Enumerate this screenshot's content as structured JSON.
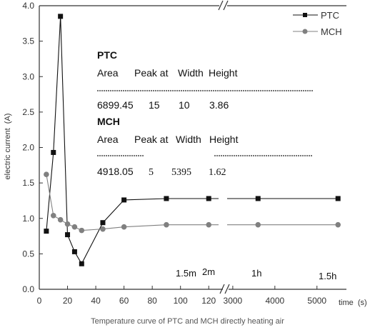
{
  "chart_data": {
    "type": "line",
    "ylabel": "electric current  (A)",
    "xlabel": "time  (s)",
    "caption": "Temperature curve of PTC and MCH directly heating air",
    "ylim": [
      0,
      4
    ],
    "y_ticks": [
      "0.0",
      "0.5",
      "1.0",
      "1.5",
      "2.0",
      "2.5",
      "3.0",
      "3.5",
      "4.0"
    ],
    "x_axis_broken": true,
    "x_segment1": {
      "range": [
        0,
        130
      ],
      "ticks": [
        "0",
        "20",
        "40",
        "60",
        "80",
        "100",
        "120"
      ]
    },
    "x_segment2": {
      "range": [
        2900,
        5700
      ],
      "ticks": [
        "3000",
        "4000",
        "5000"
      ]
    },
    "series": [
      {
        "name": "PTC",
        "marker": "square",
        "color": "#111111",
        "x": [
          5,
          10,
          15,
          20,
          25,
          30,
          45,
          60,
          90,
          120,
          3600,
          5500
        ],
        "y": [
          0.82,
          1.93,
          3.85,
          0.77,
          0.53,
          0.36,
          0.94,
          1.26,
          1.28,
          1.28,
          1.28,
          1.28
        ]
      },
      {
        "name": "MCH",
        "marker": "circle",
        "color": "#808080",
        "x": [
          5,
          10,
          15,
          20,
          25,
          30,
          45,
          60,
          90,
          120,
          3600,
          5500
        ],
        "y": [
          1.62,
          1.04,
          0.98,
          0.92,
          0.88,
          0.83,
          0.85,
          0.88,
          0.91,
          0.91,
          0.91,
          0.91
        ]
      }
    ],
    "time_labels": [
      "1.5m",
      "2m",
      "1h",
      "1.5h"
    ],
    "legend_position": "top-right",
    "grid": false,
    "peak_table": [
      {
        "name": "PTC",
        "headers": [
          "Area",
          "Peak at",
          "Width",
          "Height"
        ],
        "values": [
          "6899.45",
          "15",
          "10",
          "3.86"
        ]
      },
      {
        "name": "MCH",
        "headers": [
          "Area",
          "Peak at",
          "Width",
          "Height"
        ],
        "values": [
          "4918.05",
          "5",
          "5395",
          "1.62"
        ]
      }
    ]
  }
}
